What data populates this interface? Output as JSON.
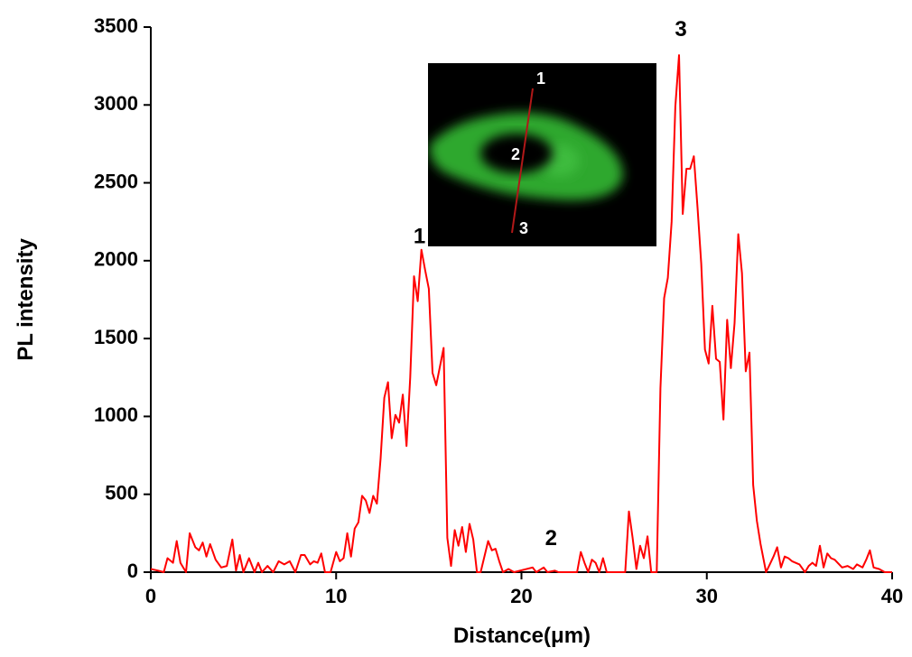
{
  "chart_data": {
    "type": "line",
    "x_label": "Distance(μm)",
    "y_label": "PL intensity",
    "color": "#ff0000",
    "xlim": [
      0,
      40
    ],
    "ylim": [
      0,
      3500
    ],
    "xticks": [
      0,
      10,
      20,
      30,
      40
    ],
    "yticks": [
      0,
      500,
      1000,
      1500,
      2000,
      2500,
      3000,
      3500
    ],
    "annotations": [
      {
        "text": "1",
        "x": 14.5,
        "y": 2150
      },
      {
        "text": "2",
        "x": 21.6,
        "y": 210
      },
      {
        "text": "3",
        "x": 28.6,
        "y": 3480
      }
    ],
    "x": [
      0,
      0.4,
      0.7,
      0.9,
      1.2,
      1.4,
      1.6,
      1.9,
      2.1,
      2.4,
      2.6,
      2.8,
      3.0,
      3.2,
      3.5,
      3.8,
      4.1,
      4.4,
      4.6,
      4.8,
      5.0,
      5.3,
      5.6,
      5.8,
      6.0,
      6.3,
      6.6,
      6.9,
      7.2,
      7.5,
      7.8,
      8.1,
      8.3,
      8.6,
      8.8,
      9.0,
      9.2,
      9.4,
      9.7,
      10.0,
      10.2,
      10.4,
      10.6,
      10.8,
      11.0,
      11.2,
      11.4,
      11.6,
      11.8,
      12.0,
      12.2,
      12.4,
      12.6,
      12.8,
      13.0,
      13.2,
      13.4,
      13.6,
      13.8,
      14.0,
      14.2,
      14.4,
      14.6,
      14.8,
      15.0,
      15.2,
      15.4,
      15.8,
      16.0,
      16.2,
      16.4,
      16.6,
      16.8,
      17.0,
      17.2,
      17.4,
      17.6,
      17.8,
      18.2,
      18.4,
      18.6,
      18.8,
      19.0,
      19.3,
      19.6,
      20.6,
      20.8,
      21.2,
      21.4,
      21.8,
      22.0,
      23.0,
      23.2,
      23.4,
      23.6,
      23.8,
      24.0,
      24.2,
      24.4,
      24.6,
      25.6,
      25.8,
      26.0,
      26.2,
      26.4,
      26.6,
      26.8,
      27.0,
      27.3,
      27.5,
      27.7,
      27.9,
      28.1,
      28.3,
      28.5,
      28.7,
      28.9,
      29.1,
      29.3,
      29.5,
      29.7,
      29.9,
      30.1,
      30.3,
      30.5,
      30.7,
      30.9,
      31.1,
      31.3,
      31.5,
      31.7,
      31.9,
      32.1,
      32.3,
      32.5,
      32.7,
      32.9,
      33.2,
      33.4,
      33.6,
      33.8,
      34.0,
      34.2,
      34.4,
      34.6,
      35.0,
      35.3,
      35.5,
      35.7,
      35.9,
      36.1,
      36.3,
      36.5,
      36.7,
      36.9,
      37.3,
      37.6,
      37.9,
      38.1,
      38.4,
      38.6,
      38.8,
      39.0,
      39.3,
      39.6,
      40.0
    ],
    "values": [
      20,
      10,
      0,
      90,
      60,
      200,
      60,
      0,
      250,
      160,
      140,
      190,
      100,
      180,
      80,
      30,
      40,
      210,
      10,
      110,
      0,
      90,
      0,
      60,
      0,
      40,
      0,
      70,
      50,
      70,
      0,
      110,
      110,
      50,
      70,
      60,
      120,
      0,
      0,
      130,
      70,
      90,
      250,
      100,
      280,
      320,
      490,
      460,
      380,
      490,
      440,
      730,
      1120,
      1220,
      860,
      1010,
      960,
      1140,
      810,
      1250,
      1900,
      1740,
      2070,
      1940,
      1820,
      1280,
      1200,
      1440,
      220,
      40,
      270,
      170,
      290,
      130,
      310,
      210,
      0,
      0,
      200,
      140,
      150,
      70,
      0,
      20,
      0,
      30,
      0,
      30,
      0,
      10,
      0,
      0,
      130,
      60,
      0,
      80,
      60,
      0,
      90,
      0,
      0,
      390,
      220,
      20,
      170,
      90,
      230,
      0,
      0,
      1180,
      1760,
      1890,
      2250,
      2990,
      3320,
      2300,
      2590,
      2590,
      2670,
      2340,
      1980,
      1430,
      1340,
      1710,
      1370,
      1350,
      980,
      1620,
      1310,
      1600,
      2170,
      1920,
      1290,
      1410,
      560,
      330,
      180,
      0,
      50,
      100,
      160,
      30,
      100,
      90,
      70,
      50,
      0,
      40,
      60,
      40,
      170,
      30,
      120,
      90,
      80,
      30,
      40,
      20,
      50,
      30,
      80,
      140,
      30,
      20,
      0,
      0
    ]
  },
  "inset_labels": [
    "1",
    "2",
    "3"
  ]
}
